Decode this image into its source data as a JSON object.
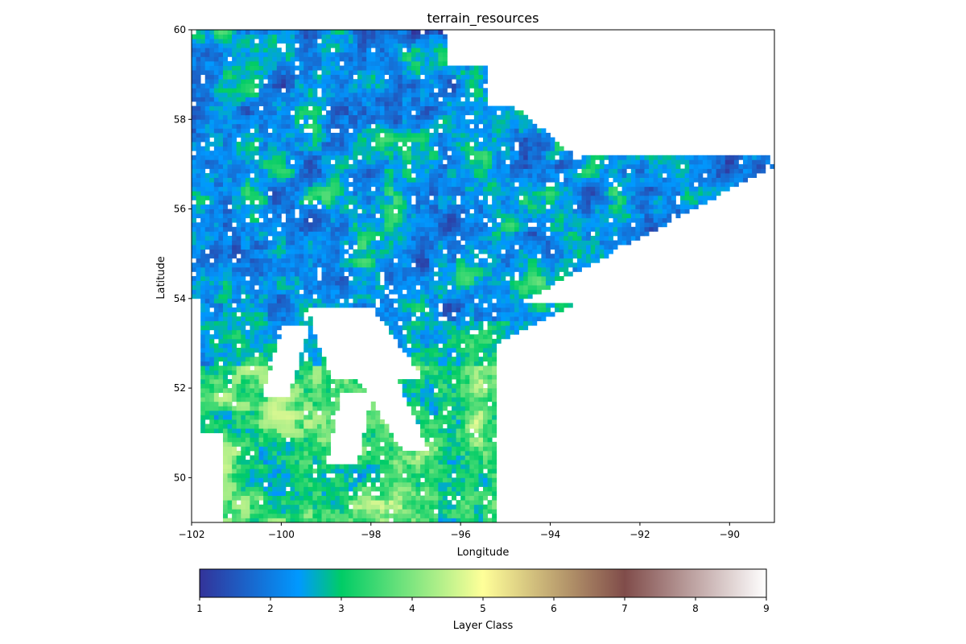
{
  "chart_data": {
    "type": "heatmap",
    "title": "terrain_resources",
    "xlabel": "Longitude",
    "ylabel": "Latitude",
    "xlim": [
      -102,
      -89
    ],
    "ylim": [
      49,
      60
    ],
    "x_ticks": [
      -102,
      -100,
      -98,
      -96,
      -94,
      -92,
      -90
    ],
    "x_tick_labels": [
      "−102",
      "−100",
      "−98",
      "−96",
      "−94",
      "−92",
      "−90"
    ],
    "y_ticks": [
      50,
      52,
      54,
      56,
      58,
      60
    ],
    "y_tick_labels": [
      "50",
      "52",
      "54",
      "56",
      "58",
      "60"
    ],
    "grid": false,
    "colorbar": {
      "label": "Layer Class",
      "range": [
        1,
        9
      ],
      "ticks": [
        1,
        2,
        3,
        4,
        5,
        6,
        7,
        8,
        9
      ],
      "tick_labels": [
        "1",
        "2",
        "3",
        "4",
        "5",
        "6",
        "7",
        "8",
        "9"
      ],
      "colormap": "terrain"
    },
    "colormap_stops": [
      {
        "value": 1.0,
        "color": "#333399"
      },
      {
        "value": 2.4,
        "color": "#0099ff"
      },
      {
        "value": 3.0,
        "color": "#00cc66"
      },
      {
        "value": 5.0,
        "color": "#ffff99"
      },
      {
        "value": 7.0,
        "color": "#804c4a"
      },
      {
        "value": 9.0,
        "color": "#ffffff"
      }
    ],
    "grid_resolution_deg": 0.1,
    "region_description_values": {
      "north_dominant_classes": [
        1,
        2,
        3,
        4
      ],
      "south_dominant_classes": [
        2,
        3,
        4,
        5
      ],
      "lake_value": "no data"
    }
  }
}
